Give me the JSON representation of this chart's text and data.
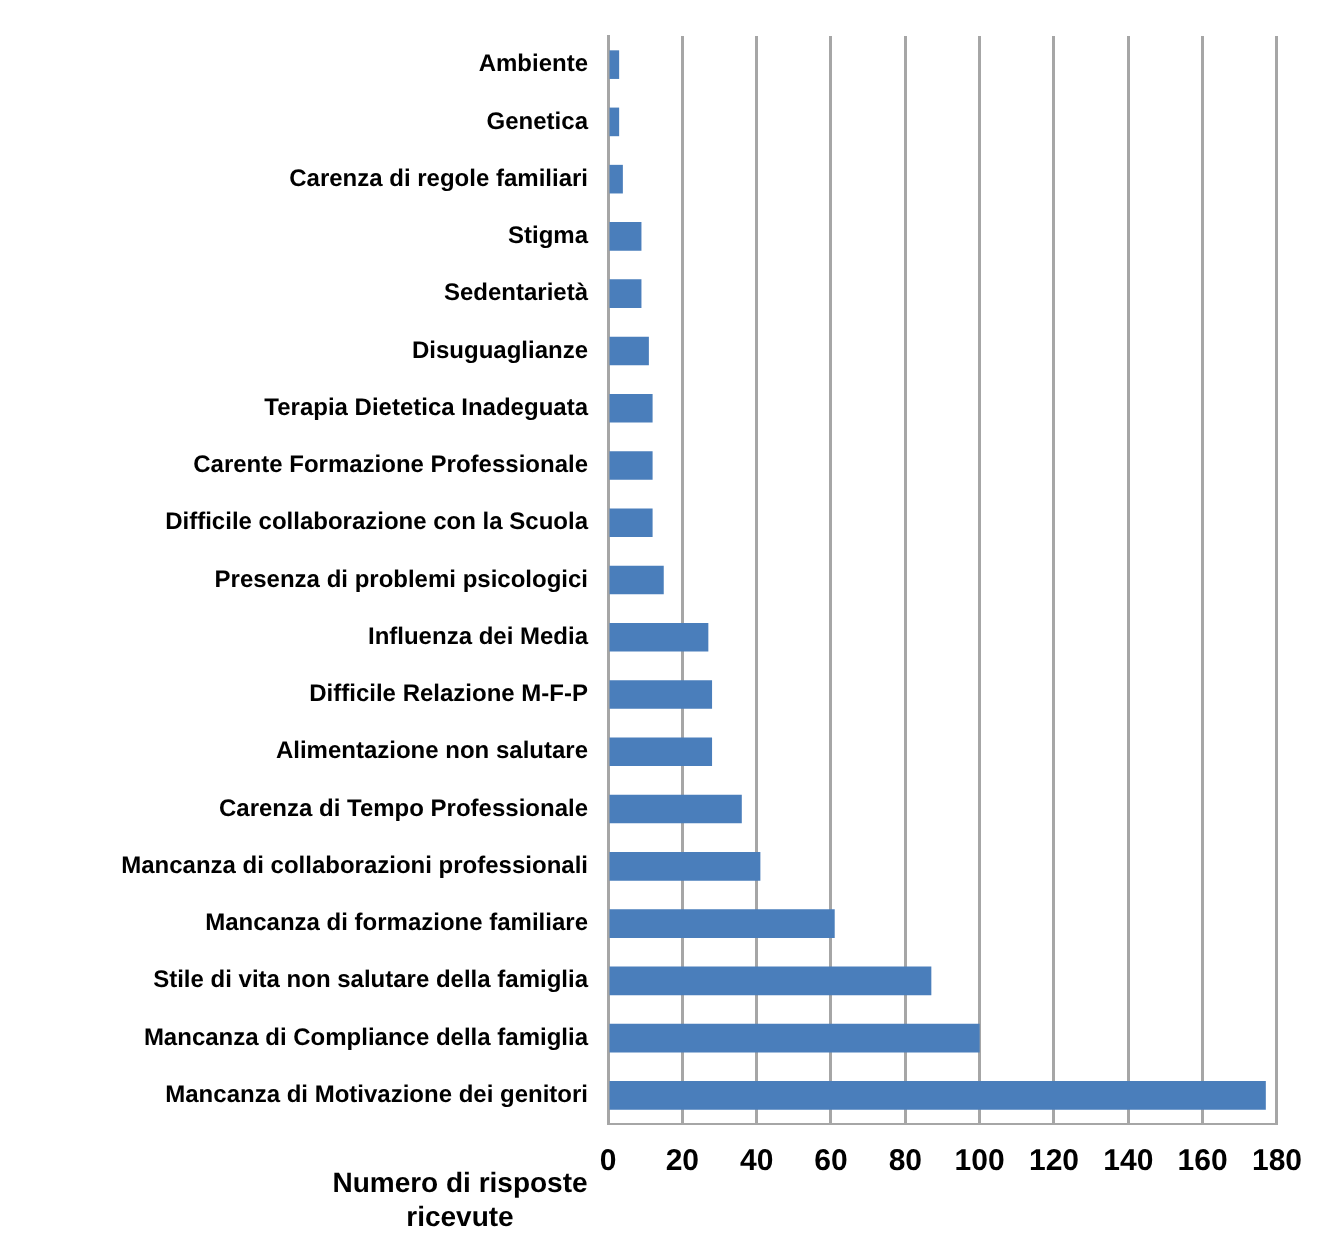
{
  "chart_data": {
    "type": "bar",
    "orientation": "horizontal",
    "xlabel": "Numero di risposte ricevute",
    "categories": [
      "Ambiente",
      "Genetica",
      "Carenza di regole familiari",
      "Stigma",
      "Sedentarietà",
      "Disuguaglianze",
      "Terapia Dietetica Inadeguata",
      "Carente Formazione Professionale",
      "Difficile collaborazione con la Scuola",
      "Presenza di problemi psicologici",
      "Influenza dei Media",
      "Difficile Relazione M-F-P",
      "Alimentazione non salutare",
      "Carenza di Tempo Professionale",
      "Mancanza di collaborazioni professionali",
      "Mancanza di formazione familiare",
      "Stile di vita non salutare della famiglia",
      "Mancanza di Compliance della famiglia",
      "Mancanza di Motivazione dei genitori"
    ],
    "values": [
      3,
      3,
      4,
      9,
      9,
      11,
      12,
      12,
      12,
      15,
      27,
      28,
      28,
      36,
      41,
      61,
      87,
      100,
      177
    ],
    "color": "#4a7ebb",
    "xlim": [
      0,
      180
    ],
    "xticks": [
      0,
      20,
      40,
      60,
      80,
      100,
      120,
      140,
      160,
      180
    ],
    "grid": "x",
    "legend": false
  }
}
